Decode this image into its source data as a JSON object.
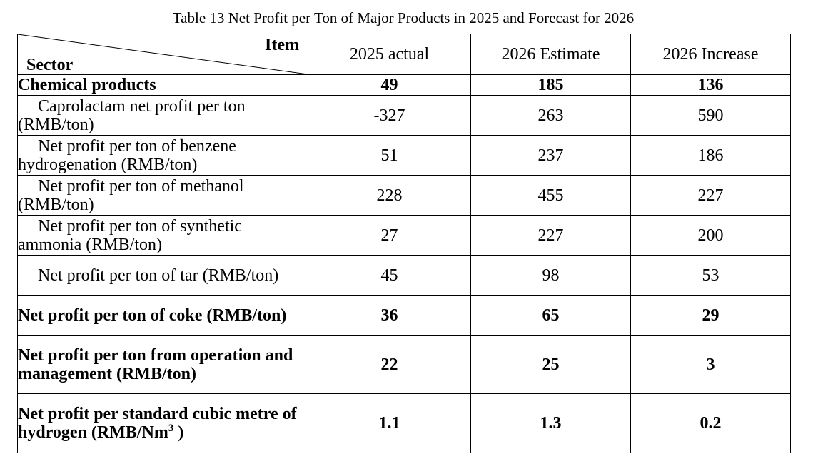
{
  "table": {
    "caption": "Table 13 Net Profit per Ton of Major Products in 2025 and Forecast for 2026",
    "corner_item": "Item",
    "corner_sector": "Sector",
    "columns": [
      "2025 actual",
      "2026 Estimate",
      "2026 Increase"
    ],
    "rows": [
      {
        "label": "Chemical products",
        "actual": "49",
        "estimate": "185",
        "increase": "136",
        "bold": true,
        "indent": false
      },
      {
        "label": "Caprolactam net profit per ton (RMB/ton)",
        "actual": "-327",
        "estimate": "263",
        "increase": "590",
        "bold": false,
        "indent": true
      },
      {
        "label": "Net profit per ton of benzene hydrogenation (RMB/ton)",
        "actual": "51",
        "estimate": "237",
        "increase": "186",
        "bold": false,
        "indent": true
      },
      {
        "label": "Net profit per ton of methanol (RMB/ton)",
        "actual": "228",
        "estimate": "455",
        "increase": "227",
        "bold": false,
        "indent": true
      },
      {
        "label": "Net profit per ton of synthetic ammonia (RMB/ton)",
        "actual": "27",
        "estimate": "227",
        "increase": "200",
        "bold": false,
        "indent": true
      },
      {
        "label": "Net profit per ton of tar (RMB/ton)",
        "actual": "45",
        "estimate": "98",
        "increase": "53",
        "bold": false,
        "indent": true
      },
      {
        "label": "Net profit per ton of coke (RMB/ton)",
        "actual": "36",
        "estimate": "65",
        "increase": "29",
        "bold": true,
        "indent": false
      },
      {
        "label": "Net profit per ton from operation and management (RMB/ton)",
        "actual": "22",
        "estimate": "25",
        "increase": "3",
        "bold": true,
        "indent": false
      },
      {
        "label_main": "Net profit per standard cubic metre of hydrogen (RMB/Nm",
        "label_sup": "3",
        "label_end": " )",
        "actual": "1.1",
        "estimate": "1.3",
        "increase": "0.2",
        "bold": true,
        "indent": false
      }
    ]
  }
}
